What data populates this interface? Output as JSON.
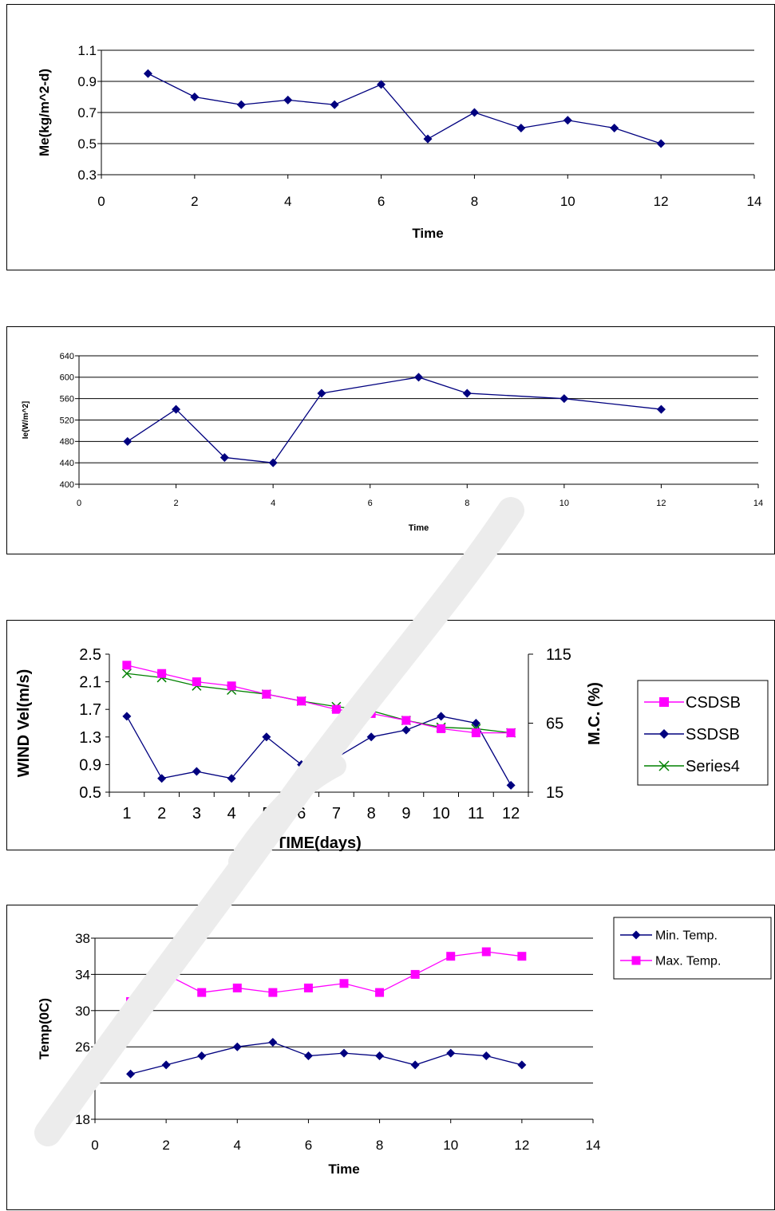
{
  "chart_data": [
    {
      "type": "line",
      "title": "",
      "xlabel": "Time",
      "ylabel": "Me(kg/m^2-d)",
      "xlim": [
        0,
        14
      ],
      "ylim": [
        0.3,
        1.1
      ],
      "xticks": [
        "0",
        "2",
        "4",
        "6",
        "8",
        "10",
        "12",
        "14"
      ],
      "yticks": [
        "0.3",
        "0.5",
        "0.7",
        "0.9",
        "1.1"
      ],
      "grid": "horizontal",
      "series": [
        {
          "color": "#00007f",
          "marker": "diamond",
          "x": [
            1,
            2,
            3,
            4,
            5,
            6,
            7,
            8,
            9,
            10,
            11,
            12
          ],
          "y": [
            0.95,
            0.8,
            0.75,
            0.78,
            0.75,
            0.88,
            0.53,
            0.7,
            0.6,
            0.65,
            0.6,
            0.5
          ]
        }
      ]
    },
    {
      "type": "line",
      "title": "",
      "xlabel": "Time",
      "ylabel": "Ie(W/m^2]",
      "xlim": [
        0,
        14
      ],
      "ylim": [
        400,
        640
      ],
      "xticks": [
        "0",
        "2",
        "4",
        "6",
        "8",
        "10",
        "12",
        "14"
      ],
      "yticks": [
        "400",
        "440",
        "480",
        "520",
        "560",
        "600",
        "640"
      ],
      "grid": "horizontal",
      "series": [
        {
          "color": "#00007f",
          "marker": "diamond",
          "x": [
            1,
            2,
            3,
            4,
            5,
            7,
            8,
            10,
            12
          ],
          "y": [
            480,
            540,
            450,
            440,
            570,
            600,
            570,
            560,
            540
          ]
        }
      ]
    },
    {
      "type": "line",
      "title": "",
      "xlabel": "TIME(days)",
      "ylabel": "WIND Vel(m/s)",
      "y2label": "M.C. (%)",
      "categories": [
        "1",
        "2",
        "3",
        "4",
        "5",
        "6",
        "7",
        "8",
        "9",
        "10",
        "11",
        "12"
      ],
      "ylim": [
        0.5,
        2.5
      ],
      "yticks": [
        "0.5",
        "0.9",
        "1.3",
        "1.7",
        "2.1",
        "2.5"
      ],
      "y2lim": [
        15,
        115
      ],
      "y2ticks": [
        "15",
        "65",
        "115"
      ],
      "grid": "none",
      "legend": "right",
      "series": [
        {
          "name": "CSDSB",
          "axis": "right",
          "color": "#ff00ff",
          "marker": "square",
          "values": [
            107,
            101,
            95,
            92,
            86,
            81,
            75,
            72,
            67,
            61,
            58,
            58
          ]
        },
        {
          "name": "SSDSB",
          "axis": "left",
          "color": "#00007f",
          "marker": "diamond",
          "values": [
            1.6,
            0.7,
            0.8,
            0.7,
            1.3,
            0.9,
            1.0,
            1.3,
            1.4,
            1.6,
            1.5,
            0.6
          ]
        },
        {
          "name": "Series4",
          "axis": "right",
          "color": "#008000",
          "marker": "x",
          "values": [
            101,
            98,
            92,
            89,
            86,
            81,
            77,
            74,
            67,
            62,
            61,
            58
          ]
        }
      ]
    },
    {
      "type": "line",
      "title": "",
      "xlabel": "Time",
      "ylabel": "Temp(0C)",
      "xlim": [
        0,
        14
      ],
      "ylim": [
        18,
        38
      ],
      "xticks": [
        "0",
        "2",
        "4",
        "6",
        "8",
        "10",
        "12",
        "14"
      ],
      "yticks": [
        "18",
        "22",
        "26",
        "30",
        "34",
        "38"
      ],
      "grid": "horizontal",
      "legend": "right",
      "series": [
        {
          "name": "Min. Temp.",
          "color": "#00007f",
          "marker": "diamond",
          "x": [
            1,
            2,
            3,
            4,
            5,
            6,
            7,
            8,
            9,
            10,
            11,
            12
          ],
          "y": [
            23,
            24,
            25,
            26,
            26.5,
            25,
            25.3,
            25,
            24,
            25.3,
            25,
            24
          ]
        },
        {
          "name": "Max. Temp.",
          "color": "#ff00ff",
          "marker": "square",
          "x": [
            1,
            2,
            3,
            4,
            5,
            6,
            7,
            8,
            9,
            10,
            11,
            12
          ],
          "y": [
            31,
            34,
            32,
            32.5,
            32,
            32.5,
            33,
            32,
            34,
            36,
            36.5,
            36
          ]
        }
      ]
    }
  ]
}
